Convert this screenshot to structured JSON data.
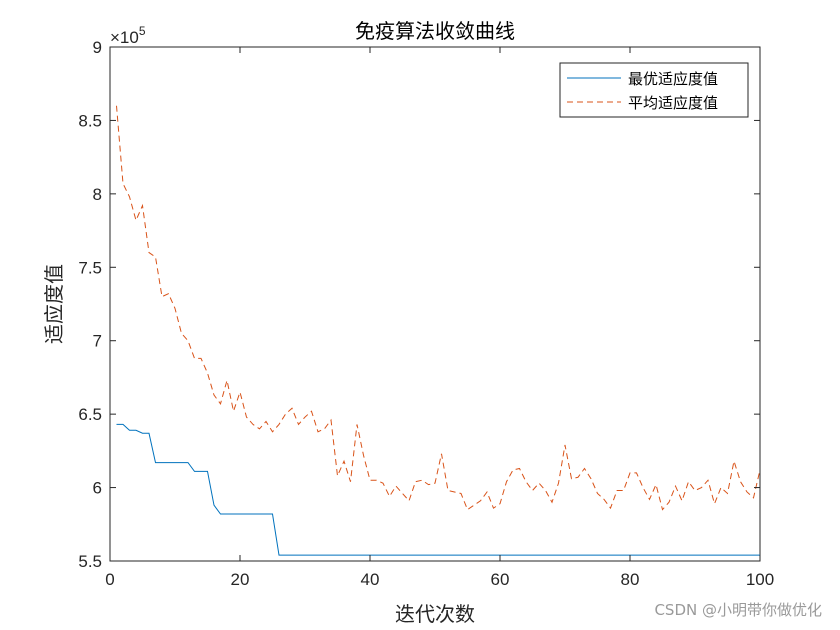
{
  "chart_data": {
    "type": "line",
    "title": "免疫算法收敛曲线",
    "xlabel": "迭代次数",
    "ylabel": "适应度值",
    "xlim": [
      0,
      100
    ],
    "ylim": [
      550000,
      900000
    ],
    "x_ticks": [
      "0",
      "20",
      "40",
      "60",
      "80",
      "100"
    ],
    "y_ticks": [
      "5.5",
      "6",
      "6.5",
      "7",
      "7.5",
      "8",
      "8.5",
      "9"
    ],
    "y_exponent_base": "×10",
    "y_exponent_power": "5",
    "legend_position": "top-right",
    "grid": false,
    "series": [
      {
        "name": "最优适应度值",
        "color": "#0072BD",
        "style": "solid",
        "x": [
          1,
          2,
          3,
          4,
          5,
          6,
          7,
          8,
          9,
          10,
          11,
          12,
          13,
          14,
          15,
          16,
          17,
          18,
          19,
          20,
          21,
          22,
          23,
          24,
          25,
          26,
          27,
          28,
          29,
          30,
          31,
          32,
          33,
          34,
          35,
          36,
          37,
          38,
          39,
          40,
          41,
          42,
          43,
          44,
          45,
          46,
          47,
          48,
          49,
          50,
          51,
          52,
          53,
          54,
          55,
          56,
          57,
          58,
          59,
          60,
          61,
          62,
          63,
          64,
          65,
          66,
          67,
          68,
          69,
          70,
          71,
          72,
          73,
          74,
          75,
          76,
          77,
          78,
          79,
          80,
          81,
          82,
          83,
          84,
          85,
          86,
          87,
          88,
          89,
          90,
          91,
          92,
          93,
          94,
          95,
          96,
          97,
          98,
          99,
          100
        ],
        "values": [
          643000,
          643000,
          639000,
          639000,
          637000,
          637000,
          617000,
          617000,
          617000,
          617000,
          617000,
          617000,
          611000,
          611000,
          611000,
          588000,
          582000,
          582000,
          582000,
          582000,
          582000,
          582000,
          582000,
          582000,
          582000,
          554000,
          554000,
          554000,
          554000,
          554000,
          554000,
          554000,
          554000,
          554000,
          554000,
          554000,
          554000,
          554000,
          554000,
          554000,
          554000,
          554000,
          554000,
          554000,
          554000,
          554000,
          554000,
          554000,
          554000,
          554000,
          554000,
          554000,
          554000,
          554000,
          554000,
          554000,
          554000,
          554000,
          554000,
          554000,
          554000,
          554000,
          554000,
          554000,
          554000,
          554000,
          554000,
          554000,
          554000,
          554000,
          554000,
          554000,
          554000,
          554000,
          554000,
          554000,
          554000,
          554000,
          554000,
          554000,
          554000,
          554000,
          554000,
          554000,
          554000,
          554000,
          554000,
          554000,
          554000,
          554000,
          554000,
          554000,
          554000,
          554000,
          554000,
          554000,
          554000,
          554000,
          554000,
          554000
        ]
      },
      {
        "name": "平均适应度值",
        "color": "#D95319",
        "style": "dashed",
        "x": [
          1,
          2,
          3,
          4,
          5,
          6,
          7,
          8,
          9,
          10,
          11,
          12,
          13,
          14,
          15,
          16,
          17,
          18,
          19,
          20,
          21,
          22,
          23,
          24,
          25,
          26,
          27,
          28,
          29,
          30,
          31,
          32,
          33,
          34,
          35,
          36,
          37,
          38,
          39,
          40,
          41,
          42,
          43,
          44,
          45,
          46,
          47,
          48,
          49,
          50,
          51,
          52,
          53,
          54,
          55,
          56,
          57,
          58,
          59,
          60,
          61,
          62,
          63,
          64,
          65,
          66,
          67,
          68,
          69,
          70,
          71,
          72,
          73,
          74,
          75,
          76,
          77,
          78,
          79,
          80,
          81,
          82,
          83,
          84,
          85,
          86,
          87,
          88,
          89,
          90,
          91,
          92,
          93,
          94,
          95,
          96,
          97,
          98,
          99,
          100
        ],
        "values": [
          860000,
          807000,
          798000,
          782000,
          792000,
          760000,
          757000,
          730000,
          732000,
          722000,
          705000,
          700000,
          688000,
          688000,
          678000,
          663000,
          657000,
          673000,
          652000,
          665000,
          648000,
          643000,
          640000,
          645000,
          638000,
          643000,
          650000,
          654000,
          643000,
          648000,
          652000,
          638000,
          640000,
          646000,
          608000,
          618000,
          604000,
          643000,
          622000,
          605000,
          605000,
          603000,
          594000,
          601000,
          596000,
          591000,
          604000,
          605000,
          602000,
          603000,
          623000,
          598000,
          597000,
          596000,
          585000,
          588000,
          591000,
          597000,
          586000,
          589000,
          604000,
          612000,
          613000,
          604000,
          598000,
          603000,
          598000,
          590000,
          603000,
          629000,
          606000,
          607000,
          613000,
          606000,
          596000,
          592000,
          586000,
          598000,
          598000,
          610000,
          610000,
          600000,
          592000,
          602000,
          585000,
          590000,
          601000,
          591000,
          604000,
          598000,
          600000,
          605000,
          589000,
          600000,
          596000,
          618000,
          604000,
          597000,
          593000,
          612000
        ]
      }
    ]
  },
  "watermark": "CSDN @小明带你做优化"
}
